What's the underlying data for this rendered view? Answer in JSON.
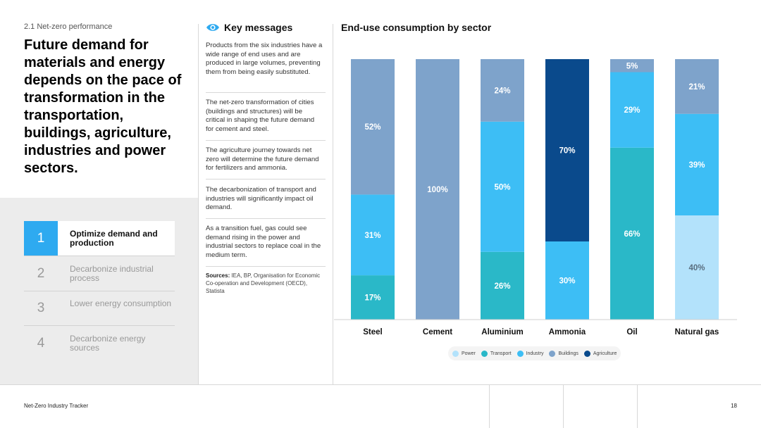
{
  "section": {
    "label": "2.1  Net-zero performance"
  },
  "headline": "Future demand for materials and energy depends on the pace of transformation in the transportation, buildings, agriculture, industries and power sectors.",
  "steps": [
    {
      "num": "1",
      "label": "Optimize demand and production",
      "active": true
    },
    {
      "num": "2",
      "label": "Decarbonize industrial process",
      "active": false
    },
    {
      "num": "3",
      "label": "Lower energy consumption",
      "active": false
    },
    {
      "num": "4",
      "label": "Decarbonize energy sources",
      "active": false
    }
  ],
  "key_messages": {
    "title": "Key messages",
    "items": [
      "Products from the six industries have a wide range of end uses and are produced in large volumes, preventing them from being easily substituted.",
      "The net-zero transformation of cities (buildings and structures) will be critical in shaping the future demand for cement and steel.",
      "The agriculture journey towards net zero will determine the future demand for fertilizers and ammonia.",
      "The decarbonization of transport and industries will significantly impact oil demand.",
      "As a transition fuel, gas could see demand rising in the power and industrial sectors to replace coal in the medium term."
    ],
    "sources_label": "Sources:",
    "sources_text": " IEA, BP, Organisation for Economic Co-operation and Development (OECD), Statista"
  },
  "chart_data": {
    "type": "bar",
    "stacked": true,
    "title": "End-use consumption by sector",
    "categories": [
      "Steel",
      "Cement",
      "Aluminium",
      "Ammonia",
      "Oil",
      "Natural gas"
    ],
    "series": [
      {
        "name": "Power",
        "color": "#b3e2fb",
        "values": [
          0,
          0,
          0,
          0,
          0,
          40
        ]
      },
      {
        "name": "Transport",
        "color": "#2ab8c8",
        "values": [
          17,
          0,
          26,
          0,
          66,
          0
        ]
      },
      {
        "name": "Industry",
        "color": "#3dbef5",
        "values": [
          31,
          0,
          50,
          30,
          29,
          39
        ]
      },
      {
        "name": "Buildings",
        "color": "#7ea3cb",
        "values": [
          52,
          100,
          24,
          0,
          5,
          21
        ]
      },
      {
        "name": "Agriculture",
        "color": "#0a4a8c",
        "values": [
          0,
          0,
          0,
          70,
          0,
          0
        ]
      }
    ],
    "ylim": [
      0,
      100
    ],
    "legend_position": "bottom"
  },
  "footer": {
    "title": "Net-Zero Industry Tracker",
    "page": "18"
  }
}
